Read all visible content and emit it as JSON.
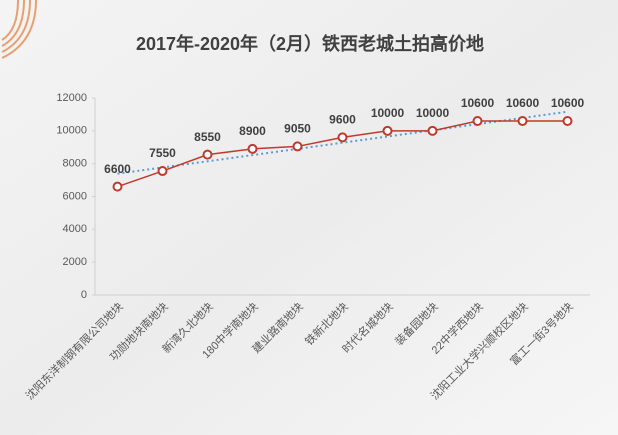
{
  "chart_data": {
    "type": "line",
    "title": "2017年-2020年（2月）铁西老城土拍高价地",
    "categories": [
      "沈阳东洋制钢有限公司地块",
      "功勋地块南地块",
      "新湾久北地块",
      "180中学南地块",
      "建业路南地块",
      "铁新北地块",
      "时代名城地块",
      "装备园地块",
      "22中学西地块",
      "沈阳工业大学兴顺校区地块",
      "富工一街3号地块"
    ],
    "values": [
      6600,
      7550,
      8550,
      8900,
      9050,
      9600,
      10000,
      10000,
      10600,
      10600,
      10600
    ],
    "color": "#c0392b",
    "trendline": true,
    "trendline_color": "#5b9bd5",
    "ylim": [
      0,
      12000
    ],
    "yticks": [
      0,
      2000,
      4000,
      6000,
      8000,
      10000,
      12000
    ],
    "grid": false
  }
}
